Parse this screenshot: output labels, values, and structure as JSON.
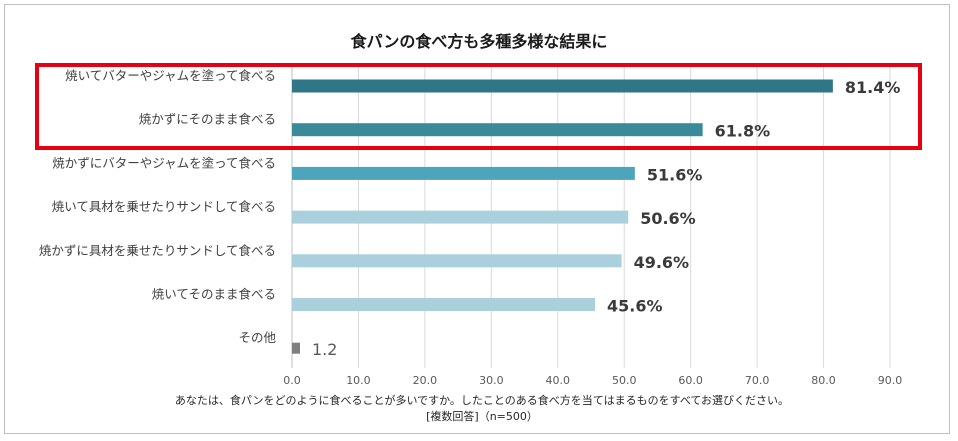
{
  "chart_data": {
    "type": "bar",
    "orientation": "horizontal",
    "title": "食パンの食べ方も多種多様な結果に",
    "categories": [
      "焼いてバターやジャムを塗って食べる",
      "焼かずにそのまま食べる",
      "焼かずにバターやジャムを塗って食べる",
      "焼いて具材を乗せたりサンドして食べる",
      "焼かずに具材を乗せたりサンドして食べる",
      "焼いてそのまま食べる",
      "その他"
    ],
    "values": [
      81.4,
      61.8,
      51.6,
      50.6,
      49.6,
      45.6,
      1.2
    ],
    "value_labels": [
      "81.4%",
      "61.8%",
      "51.6%",
      "50.6%",
      "49.6%",
      "45.6%",
      "1.2"
    ],
    "bar_colors": [
      "#2f7686",
      "#3a8b99",
      "#4ca5bb",
      "#a9d0dc",
      "#a9d0dc",
      "#a9d0dc",
      "#7f7f7f"
    ],
    "xlim": [
      0,
      90
    ],
    "x_ticks": [
      "0.0",
      "10.0",
      "20.0",
      "30.0",
      "40.0",
      "50.0",
      "60.0",
      "70.0",
      "80.0",
      "90.0"
    ],
    "gridlines": true,
    "highlight_color": "#e60012",
    "question": "あなたは、食パンをどのように食べることが多いですか。したことのある食べ方を当てはまるものをすべてお選びください。",
    "footnote": "[複数回答]（n=500）"
  }
}
